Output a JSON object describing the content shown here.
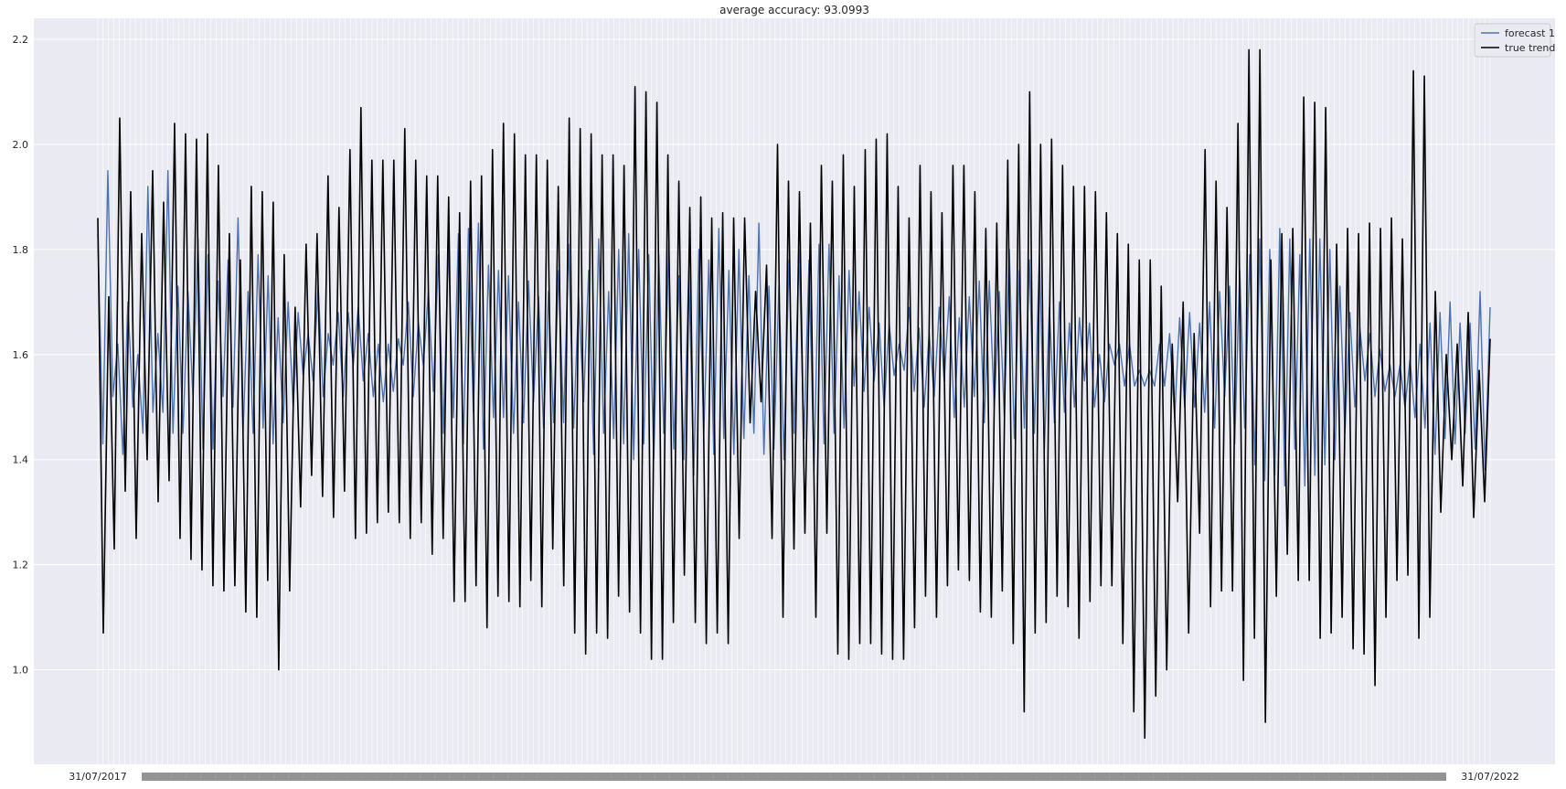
{
  "chart_data": {
    "type": "line",
    "title": "average accuracy: 93.0993",
    "xlabel": "",
    "ylabel": "",
    "ylim": [
      0.82,
      2.24
    ],
    "y_ticks": [
      "1.0",
      "1.2",
      "1.4",
      "1.6",
      "1.8",
      "2.0",
      "2.2"
    ],
    "x_tick_labels": {
      "first": "31/07/2017",
      "last": "31/07/2022"
    },
    "grid": true,
    "legend_position": "top-right",
    "background_color": "#eaeaf2",
    "series": [
      {
        "name": "forecast 1",
        "color": "#4c72b0",
        "values": [
          1.83,
          1.43,
          1.95,
          1.52,
          1.62,
          1.41,
          1.7,
          1.5,
          1.6,
          1.45,
          1.92,
          1.49,
          1.64,
          1.49,
          1.95,
          1.45,
          1.73,
          1.45,
          1.72,
          1.52,
          1.82,
          1.42,
          1.79,
          1.42,
          1.74,
          1.52,
          1.78,
          1.5,
          1.86,
          1.45,
          1.72,
          1.45,
          1.79,
          1.46,
          1.75,
          1.43,
          1.67,
          1.47,
          1.7,
          1.5,
          1.68,
          1.56,
          1.64,
          1.55,
          1.73,
          1.52,
          1.64,
          1.58,
          1.68,
          1.52,
          1.68,
          1.58,
          1.69,
          1.55,
          1.64,
          1.52,
          1.62,
          1.51,
          1.62,
          1.53,
          1.63,
          1.58,
          1.7,
          1.52,
          1.66,
          1.58,
          1.72,
          1.53,
          1.79,
          1.45,
          1.81,
          1.48,
          1.83,
          1.43,
          1.84,
          1.49,
          1.85,
          1.42,
          1.77,
          1.48,
          1.76,
          1.48,
          1.75,
          1.45,
          1.7,
          1.47,
          1.74,
          1.51,
          1.71,
          1.46,
          1.72,
          1.47,
          1.76,
          1.47,
          1.81,
          1.46,
          1.71,
          1.51,
          1.76,
          1.41,
          1.82,
          1.45,
          1.72,
          1.44,
          1.8,
          1.43,
          1.83,
          1.4,
          1.8,
          1.43,
          1.79,
          1.4,
          1.79,
          1.45,
          1.81,
          1.42,
          1.75,
          1.4,
          1.76,
          1.37,
          1.8,
          1.45,
          1.78,
          1.41,
          1.84,
          1.44,
          1.76,
          1.41,
          1.8,
          1.44,
          1.75,
          1.45,
          1.85,
          1.41,
          1.73,
          1.42,
          1.73,
          1.4,
          1.78,
          1.45,
          1.8,
          1.44,
          1.78,
          1.38,
          1.81,
          1.43,
          1.81,
          1.45,
          1.75,
          1.46,
          1.76,
          1.54,
          1.72,
          1.53,
          1.69,
          1.55,
          1.66,
          1.5,
          1.66,
          1.56,
          1.62,
          1.57,
          1.69,
          1.53,
          1.65,
          1.5,
          1.64,
          1.52,
          1.69,
          1.55,
          1.71,
          1.48,
          1.67,
          1.5,
          1.71,
          1.52,
          1.74,
          1.47,
          1.74,
          1.5,
          1.72,
          1.48,
          1.8,
          1.44,
          1.76,
          1.46,
          1.78,
          1.45,
          1.79,
          1.42,
          1.69,
          1.47,
          1.7,
          1.49,
          1.66,
          1.5,
          1.67,
          1.55,
          1.66,
          1.5,
          1.6,
          1.51,
          1.62,
          1.58,
          1.62,
          1.54,
          1.62,
          1.54,
          1.57,
          1.54,
          1.57,
          1.54,
          1.62,
          1.54,
          1.64,
          1.48,
          1.67,
          1.5,
          1.68,
          1.5,
          1.66,
          1.49,
          1.7,
          1.46,
          1.72,
          1.52,
          1.73,
          1.43,
          1.76,
          1.46,
          1.79,
          1.39,
          1.82,
          1.36,
          1.8,
          1.37,
          1.84,
          1.35,
          1.82,
          1.42,
          1.79,
          1.35,
          1.82,
          1.37,
          1.82,
          1.39,
          1.8,
          1.4,
          1.73,
          1.45,
          1.68,
          1.5,
          1.65,
          1.55,
          1.64,
          1.52,
          1.61,
          1.53,
          1.58,
          1.52,
          1.58,
          1.5,
          1.59,
          1.48,
          1.62,
          1.46,
          1.66,
          1.41,
          1.68,
          1.44,
          1.7,
          1.43,
          1.66,
          1.45,
          1.66,
          1.42,
          1.72,
          1.38,
          1.69
        ]
      },
      {
        "name": "true trend",
        "color": "#000000",
        "values": [
          1.86,
          1.07,
          1.71,
          1.23,
          2.05,
          1.34,
          1.91,
          1.25,
          1.83,
          1.4,
          1.95,
          1.32,
          1.89,
          1.36,
          2.04,
          1.25,
          2.02,
          1.21,
          2.01,
          1.19,
          2.02,
          1.16,
          1.96,
          1.15,
          1.83,
          1.16,
          1.78,
          1.11,
          1.92,
          1.1,
          1.91,
          1.17,
          1.89,
          1.0,
          1.79,
          1.15,
          1.69,
          1.31,
          1.81,
          1.37,
          1.83,
          1.33,
          1.94,
          1.29,
          1.88,
          1.34,
          1.99,
          1.25,
          2.07,
          1.26,
          1.97,
          1.28,
          1.97,
          1.3,
          1.97,
          1.28,
          2.03,
          1.25,
          1.97,
          1.28,
          1.94,
          1.22,
          1.94,
          1.25,
          1.9,
          1.13,
          1.87,
          1.13,
          1.93,
          1.16,
          1.94,
          1.08,
          1.99,
          1.14,
          2.04,
          1.13,
          2.02,
          1.12,
          1.98,
          1.17,
          1.98,
          1.12,
          1.97,
          1.23,
          1.92,
          1.16,
          2.05,
          1.07,
          2.03,
          1.03,
          2.02,
          1.07,
          1.98,
          1.06,
          1.98,
          1.14,
          1.96,
          1.11,
          2.11,
          1.07,
          2.1,
          1.02,
          2.08,
          1.02,
          1.98,
          1.09,
          1.93,
          1.18,
          1.88,
          1.09,
          1.9,
          1.05,
          1.86,
          1.07,
          1.87,
          1.05,
          1.86,
          1.25,
          1.86,
          1.47,
          1.72,
          1.51,
          1.77,
          1.25,
          2.0,
          1.1,
          1.93,
          1.23,
          1.91,
          1.26,
          1.85,
          1.1,
          1.96,
          1.26,
          1.93,
          1.03,
          1.98,
          1.02,
          1.92,
          1.05,
          1.99,
          1.05,
          2.01,
          1.03,
          2.02,
          1.02,
          1.92,
          1.02,
          1.86,
          1.08,
          1.96,
          1.14,
          1.91,
          1.1,
          1.87,
          1.16,
          1.96,
          1.19,
          1.96,
          1.17,
          1.91,
          1.11,
          1.84,
          1.1,
          1.85,
          1.15,
          1.97,
          1.05,
          2.0,
          0.92,
          2.1,
          1.07,
          2.0,
          1.09,
          2.01,
          1.14,
          1.96,
          1.12,
          1.92,
          1.06,
          1.92,
          1.13,
          1.91,
          1.16,
          1.87,
          1.16,
          1.83,
          1.05,
          1.81,
          0.92,
          1.78,
          0.87,
          1.78,
          0.95,
          1.73,
          1.0,
          1.62,
          1.32,
          1.7,
          1.07,
          1.64,
          1.26,
          1.99,
          1.12,
          1.93,
          1.15,
          1.88,
          1.15,
          2.04,
          0.98,
          2.18,
          1.06,
          2.18,
          0.9,
          1.78,
          1.14,
          1.83,
          1.22,
          1.84,
          1.17,
          2.09,
          1.17,
          2.08,
          1.06,
          2.07,
          1.07,
          1.81,
          1.1,
          1.84,
          1.04,
          1.83,
          1.03,
          1.85,
          0.97,
          1.84,
          1.1,
          1.86,
          1.17,
          1.82,
          1.18,
          2.14,
          1.06,
          2.13,
          1.1,
          1.72,
          1.3,
          1.6,
          1.4,
          1.62,
          1.35,
          1.68,
          1.29,
          1.57,
          1.32,
          1.63
        ]
      }
    ]
  }
}
